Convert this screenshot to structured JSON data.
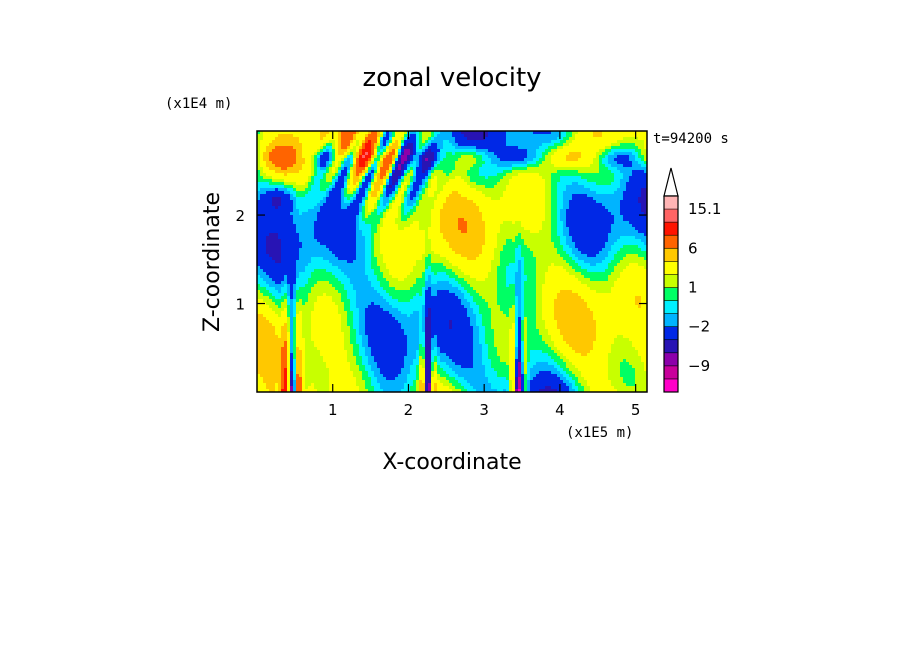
{
  "chart_data": {
    "type": "heatmap",
    "title": "zonal velocity",
    "xlabel": "X-coordinate",
    "ylabel": "Z-coordinate",
    "x_scale_label": "(x1E5 m)",
    "y_scale_label": "(x1E4 m)",
    "time_label": "t=94200 s",
    "xlim": [
      0,
      5.15
    ],
    "ylim": [
      0,
      2.95
    ],
    "x_ticks": [
      1,
      2,
      3,
      4,
      5
    ],
    "y_ticks": [
      1,
      2
    ],
    "colorbar": {
      "levels": [
        -15,
        -12,
        -9,
        -6,
        -4,
        -2,
        -1,
        0,
        1,
        2,
        4,
        6,
        9,
        12,
        15.1
      ],
      "colors": [
        "#ff00c8",
        "#c8009b",
        "#8c00aa",
        "#2814b4",
        "#0028e6",
        "#00b4ff",
        "#00f0ff",
        "#00ff64",
        "#c8ff00",
        "#ffff00",
        "#ffc800",
        "#ff6400",
        "#ff1400",
        "#ff6464",
        "#ffb4b4"
      ],
      "labels": [
        {
          "text": "15.1",
          "value": 15.1
        },
        {
          "text": "6",
          "value": 6
        },
        {
          "text": "1",
          "value": 1
        },
        {
          "text": "−2",
          "value": -2
        },
        {
          "text": "−9",
          "value": -9
        }
      ]
    }
  }
}
